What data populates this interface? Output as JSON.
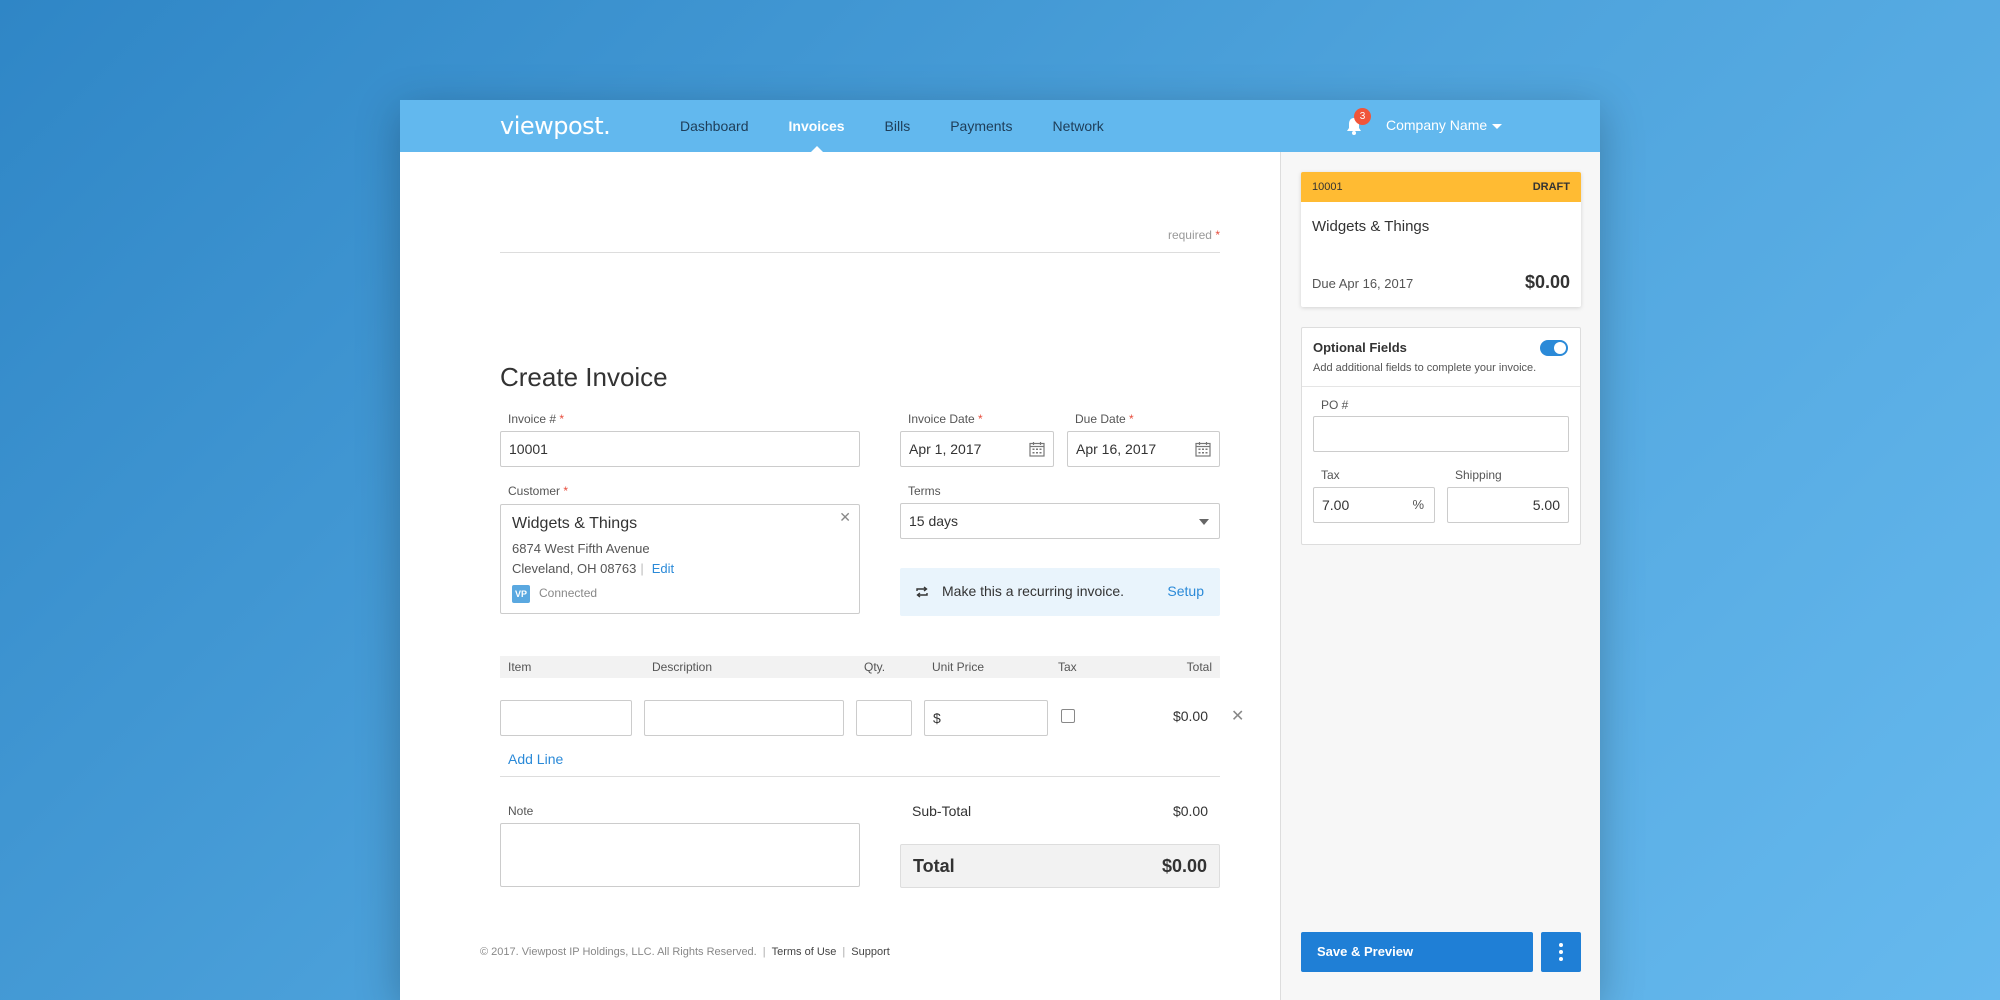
{
  "nav": {
    "logo": "viewpost.",
    "links": [
      {
        "label": "Dashboard",
        "active": false
      },
      {
        "label": "Invoices",
        "active": true
      },
      {
        "label": "Bills",
        "active": false
      },
      {
        "label": "Payments",
        "active": false
      },
      {
        "label": "Network",
        "active": false
      }
    ],
    "notification_count": "3",
    "company": "Company Name"
  },
  "form": {
    "required_note": "required",
    "title": "Create Invoice",
    "invoice_number": {
      "label": "Invoice #",
      "value": "10001"
    },
    "invoice_date": {
      "label": "Invoice Date",
      "value": "Apr 1, 2017"
    },
    "due_date": {
      "label": "Due Date",
      "value": "Apr 16, 2017"
    },
    "customer": {
      "label": "Customer",
      "name": "Widgets & Things",
      "address1": "6874 West Fifth Avenue",
      "address2": "Cleveland, OH 08763",
      "edit": "Edit",
      "badge": "VP",
      "status": "Connected"
    },
    "terms": {
      "label": "Terms",
      "value": "15 days"
    },
    "recurring": {
      "text": "Make this a recurring invoice.",
      "action": "Setup"
    },
    "line_headers": {
      "item": "Item",
      "description": "Description",
      "qty": "Qty.",
      "unit_price": "Unit Price",
      "tax": "Tax",
      "total": "Total"
    },
    "line": {
      "unit_price_prefix": "$",
      "total": "$0.00"
    },
    "add_line": "Add Line",
    "note_label": "Note",
    "subtotal": {
      "label": "Sub-Total",
      "value": "$0.00"
    },
    "total": {
      "label": "Total",
      "value": "$0.00"
    }
  },
  "footer": {
    "copyright": "© 2017. Viewpost IP Holdings, LLC. All Rights Reserved.",
    "terms": "Terms of Use",
    "support": "Support"
  },
  "sidebar": {
    "card": {
      "number": "10001",
      "status": "DRAFT",
      "customer": "Widgets & Things",
      "due": "Due Apr 16, 2017",
      "amount": "$0.00"
    },
    "optional": {
      "title": "Optional Fields",
      "subtitle": "Add additional fields to complete your invoice.",
      "enabled": true,
      "po_label": "PO #",
      "tax_label": "Tax",
      "tax_value": "7.00",
      "tax_unit": "%",
      "shipping_label": "Shipping",
      "shipping_value": "5.00"
    },
    "save_button": "Save & Preview"
  },
  "colors": {
    "nav_bg": "#62b8ee",
    "accent_blue": "#1f7fd6",
    "draft_yellow": "#ffbb33",
    "badge_red": "#f0553a"
  }
}
